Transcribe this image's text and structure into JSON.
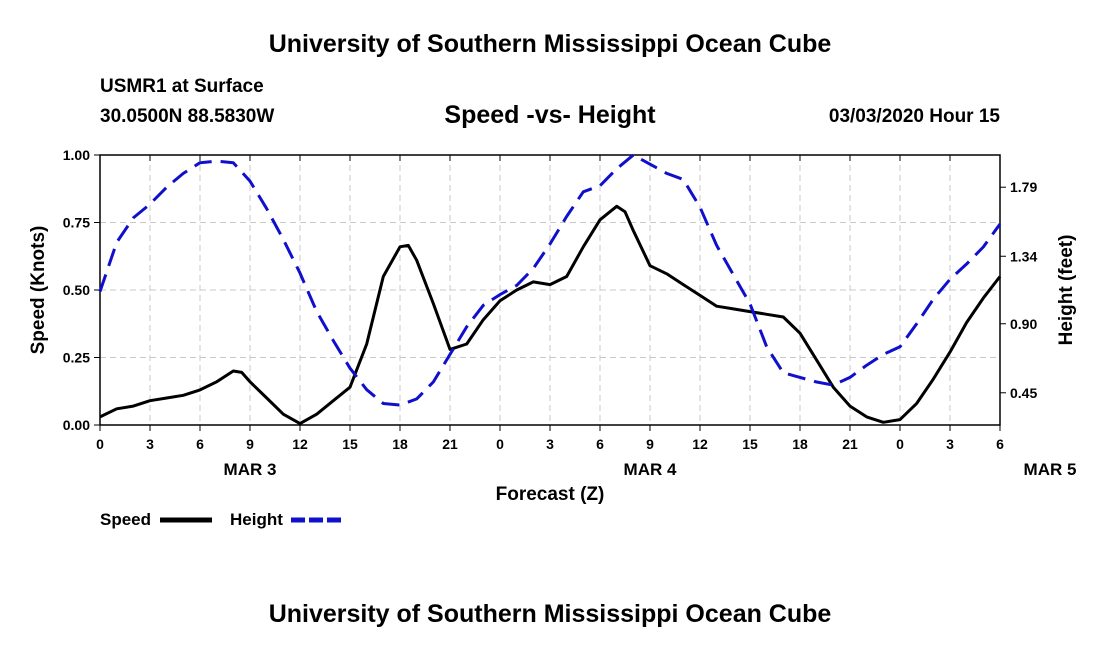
{
  "header": {
    "title": "University of Southern Mississippi Ocean Cube",
    "station": "USMR1 at Surface",
    "coordinates": "30.0500N 88.5830W",
    "chart_title": "Speed -vs- Height",
    "datetime": "03/03/2020 Hour 15"
  },
  "footer": {
    "title": "University of Southern Mississippi Ocean Cube"
  },
  "colors": {
    "speed": "#000000",
    "height": "#1010cc",
    "grid": "#c8c8c8"
  },
  "chart_data": {
    "type": "line",
    "title": "Speed -vs- Height",
    "xlabel": "Forecast (Z)",
    "ylabel": "Speed (Knots)",
    "y2label": "Height (feet)",
    "x_tick_labels": [
      "0",
      "3",
      "6",
      "9",
      "12",
      "15",
      "18",
      "21",
      "0",
      "3",
      "6",
      "9",
      "12",
      "15",
      "18",
      "21",
      "0",
      "3",
      "6"
    ],
    "date_labels": [
      {
        "label": "MAR 3",
        "hour": 9
      },
      {
        "label": "MAR 4",
        "hour": 33
      },
      {
        "label": "MAR 5",
        "hour": 57
      }
    ],
    "xlim": [
      0,
      54
    ],
    "ylim": [
      0,
      1.0
    ],
    "y_ticks": [
      "0.00",
      "0.25",
      "0.50",
      "0.75",
      "1.00"
    ],
    "y2lim": [
      0.24,
      2.0
    ],
    "y2_ticks": [
      "0.45",
      "0.90",
      "1.34",
      "1.79"
    ],
    "grid": true,
    "legend": "bottom-left",
    "series": [
      {
        "name": "Speed",
        "axis": "left",
        "style": "solid",
        "x": [
          0,
          1,
          2,
          3,
          4,
          5,
          6,
          7,
          8,
          8.5,
          9,
          10,
          11,
          12,
          13,
          14,
          15,
          16,
          17,
          18,
          18.5,
          19,
          20,
          21,
          22,
          23,
          24,
          25,
          26,
          27,
          28,
          29,
          30,
          31,
          31.5,
          32,
          33,
          34,
          35,
          36,
          37,
          38,
          39,
          40,
          41,
          42,
          43,
          44,
          45,
          46,
          47,
          48,
          49,
          50,
          51,
          52,
          53,
          54
        ],
        "values": [
          0.03,
          0.06,
          0.07,
          0.09,
          0.1,
          0.11,
          0.13,
          0.16,
          0.2,
          0.195,
          0.16,
          0.1,
          0.04,
          0.005,
          0.04,
          0.09,
          0.14,
          0.3,
          0.55,
          0.66,
          0.665,
          0.61,
          0.45,
          0.28,
          0.3,
          0.39,
          0.46,
          0.5,
          0.53,
          0.52,
          0.55,
          0.66,
          0.76,
          0.81,
          0.79,
          0.72,
          0.59,
          0.56,
          0.52,
          0.48,
          0.44,
          0.43,
          0.42,
          0.41,
          0.4,
          0.34,
          0.24,
          0.14,
          0.07,
          0.03,
          0.01,
          0.02,
          0.08,
          0.17,
          0.27,
          0.38,
          0.47,
          0.55
        ]
      },
      {
        "name": "Height",
        "axis": "right",
        "style": "dashed",
        "x": [
          0,
          1,
          2,
          3,
          4,
          5,
          6,
          7,
          8,
          9,
          10,
          11,
          12,
          13,
          14,
          15,
          16,
          17,
          18,
          19,
          20,
          21,
          22,
          23,
          24,
          25,
          26,
          27,
          28,
          29,
          30,
          31,
          32,
          33,
          34,
          35,
          36,
          37,
          38,
          39,
          40,
          41,
          42,
          43,
          44,
          45,
          46,
          47,
          48,
          49,
          50,
          51,
          52,
          53,
          54
        ],
        "values": [
          1.11,
          1.43,
          1.59,
          1.68,
          1.79,
          1.88,
          1.95,
          1.96,
          1.95,
          1.83,
          1.65,
          1.45,
          1.23,
          0.98,
          0.79,
          0.61,
          0.47,
          0.38,
          0.37,
          0.41,
          0.52,
          0.7,
          0.88,
          1.02,
          1.09,
          1.15,
          1.26,
          1.42,
          1.6,
          1.76,
          1.8,
          1.91,
          2.0,
          1.94,
          1.88,
          1.84,
          1.66,
          1.41,
          1.22,
          1.03,
          0.75,
          0.58,
          0.55,
          0.52,
          0.5,
          0.55,
          0.63,
          0.7,
          0.75,
          0.9,
          1.06,
          1.19,
          1.29,
          1.4,
          1.55
        ]
      }
    ]
  },
  "legend": {
    "items": [
      {
        "label": "Speed"
      },
      {
        "label": "Height"
      }
    ]
  }
}
